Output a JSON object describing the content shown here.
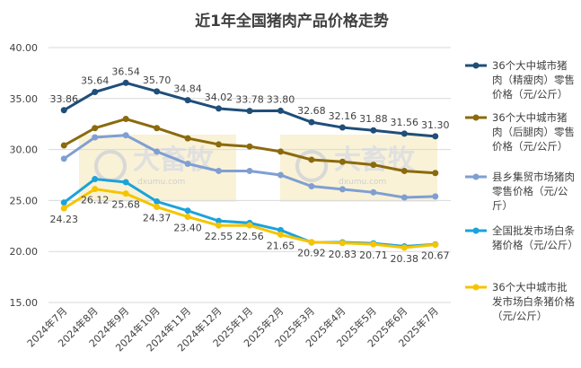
{
  "chart_data": {
    "type": "line",
    "title": "近1年全国猪肉产品价格走势",
    "categories": [
      "2024年7月",
      "2024年8月",
      "2024年9月",
      "2024年10月",
      "2024年11月",
      "2024年12月",
      "2025年1月",
      "2025年2月",
      "2025年3月",
      "2025年4月",
      "2025年5月",
      "2025年6月",
      "2025年7月"
    ],
    "series": [
      {
        "name": "36个大中城市猪肉（精瘦肉）零售价格（元/公斤）",
        "color": "#1f4e79",
        "values": [
          33.86,
          35.64,
          36.54,
          35.7,
          34.84,
          34.02,
          33.78,
          33.8,
          32.68,
          32.16,
          31.88,
          31.56,
          31.3
        ],
        "value_labels": [
          "33.86",
          "35.64",
          "36.54",
          "35.70",
          "34.84",
          "34.02",
          "33.78",
          "33.80",
          "32.68",
          "32.16",
          "31.88",
          "31.56",
          "31.30"
        ],
        "label_position": "above"
      },
      {
        "name": "36个大中城市猪肉（后腿肉）零售价格（元/公斤）",
        "color": "#8b6a0e",
        "values": [
          30.4,
          32.1,
          33.0,
          32.1,
          31.1,
          30.5,
          30.3,
          29.8,
          29.0,
          28.8,
          28.5,
          27.9,
          27.7
        ]
      },
      {
        "name": "县乡集贸市场猪肉零售价格（元/公斤）",
        "color": "#7f9fd3",
        "values": [
          29.1,
          31.2,
          31.4,
          29.8,
          28.6,
          27.9,
          27.9,
          27.5,
          26.4,
          26.1,
          25.8,
          25.3,
          25.4
        ]
      },
      {
        "name": "全国批发市场白条猪价格（元/公斤）",
        "color": "#1ba3da",
        "values": [
          24.8,
          27.1,
          26.8,
          24.9,
          24.0,
          23.0,
          22.8,
          22.1,
          20.9,
          20.9,
          20.8,
          20.5,
          20.7
        ]
      },
      {
        "name": "36个大中城市批发市场白条猪价格（元/公斤）",
        "color": "#f5c400",
        "values": [
          24.23,
          26.12,
          25.68,
          24.37,
          23.4,
          22.55,
          22.56,
          21.65,
          20.92,
          20.83,
          20.71,
          20.38,
          20.67
        ],
        "value_labels": [
          "24.23",
          "26.12",
          "25.68",
          "24.37",
          "23.40",
          "22.55",
          "22.56",
          "21.65",
          "20.92",
          "20.83",
          "20.71",
          "20.38",
          "20.67"
        ],
        "label_position": "below"
      }
    ],
    "ylim": [
      15,
      40
    ],
    "yticks": [
      {
        "value": 15,
        "label": "15.00"
      },
      {
        "value": 20,
        "label": "20.00"
      },
      {
        "value": 25,
        "label": "25.00"
      },
      {
        "value": 30,
        "label": "30.00"
      },
      {
        "value": 35,
        "label": "35.00"
      },
      {
        "value": 40,
        "label": "40.00"
      }
    ],
    "grid": true,
    "legend": "right",
    "watermark": {
      "text": "大畜牧",
      "url": "dxumu.com"
    }
  }
}
